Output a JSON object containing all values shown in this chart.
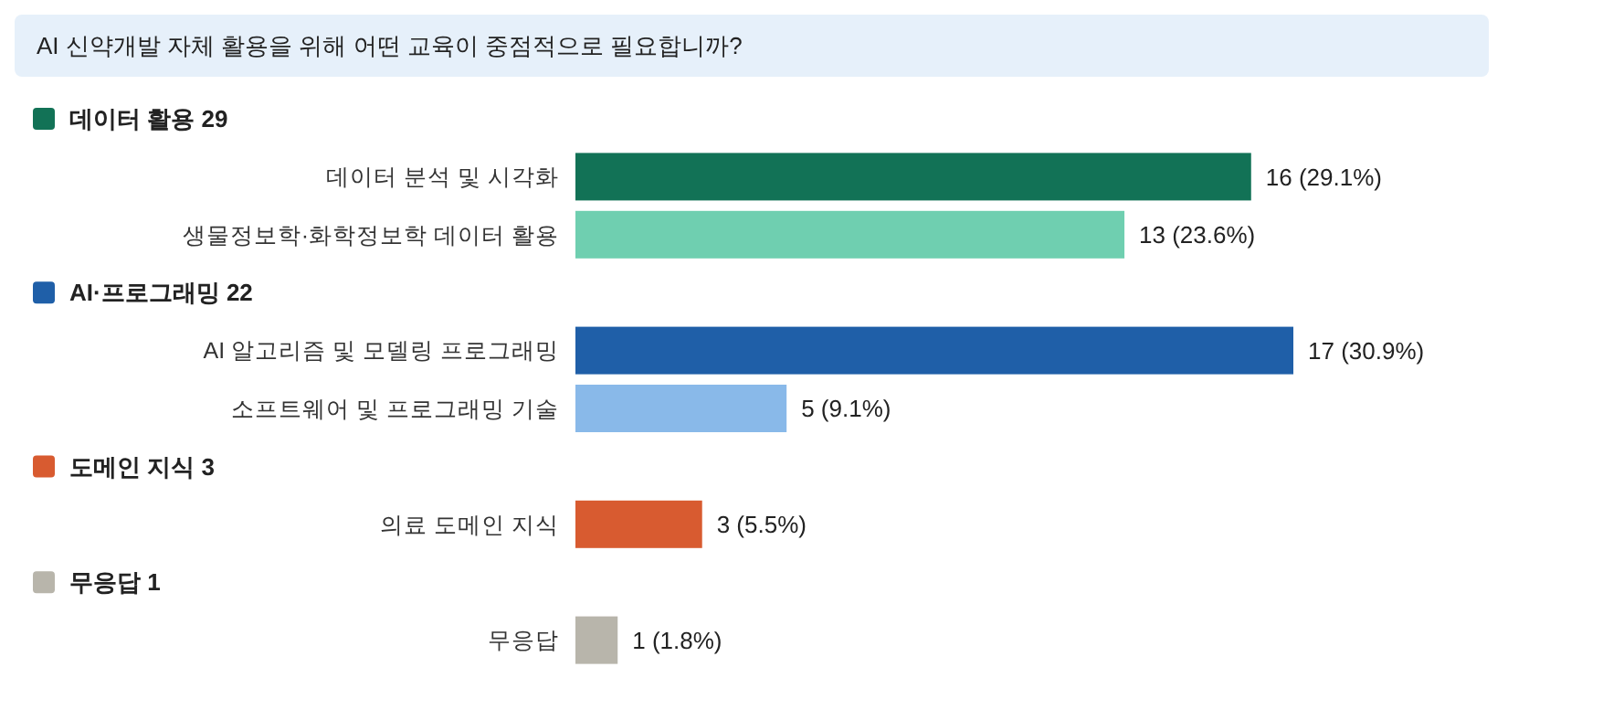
{
  "chart_data": {
    "type": "bar",
    "orientation": "horizontal",
    "title": "AI 신약개발 자체 활용을 위해 어떤 교육이 중점적으로 필요합니까?",
    "categories": [
      "데이터 분석 및 시각화",
      "생물정보학·화학정보학 데이터 활용",
      "AI 알고리즘 및 모델링 프로그래밍",
      "소프트웨어 및 프로그래밍 기술",
      "의료 도메인 지식",
      "무응답"
    ],
    "series": [
      {
        "name": "데이터 활용 29",
        "color": "#127256",
        "colors": [
          "#127256",
          "#6fcfb0",
          null,
          null,
          null,
          null
        ],
        "values": [
          16,
          13,
          null,
          null,
          null,
          null
        ],
        "value_labels": [
          "16 (29.1%)",
          "13 (23.6%)",
          null,
          null,
          null,
          null
        ]
      },
      {
        "name": "AI·프로그래밍 22",
        "color": "#1f5fa8",
        "colors": [
          null,
          null,
          "#1f5fa8",
          "#89b9e9",
          null,
          null
        ],
        "values": [
          null,
          null,
          17,
          5,
          null,
          null
        ],
        "value_labels": [
          null,
          null,
          "17 (30.9%)",
          "5 (9.1%)",
          null,
          null
        ]
      },
      {
        "name": "도메인 지식 3",
        "color": "#d85b30",
        "colors": [
          null,
          null,
          null,
          null,
          "#d85b30",
          null
        ],
        "values": [
          null,
          null,
          null,
          null,
          3,
          null
        ],
        "value_labels": [
          null,
          null,
          null,
          null,
          "3 (5.5%)",
          null
        ]
      },
      {
        "name": "무응답 1",
        "color": "#b8b5ab",
        "colors": [
          null,
          null,
          null,
          null,
          null,
          "#b8b5ab"
        ],
        "values": [
          null,
          null,
          null,
          null,
          null,
          1
        ],
        "value_labels": [
          null,
          null,
          null,
          null,
          null,
          "1 (1.8%)"
        ]
      }
    ],
    "legend": "left"
  }
}
